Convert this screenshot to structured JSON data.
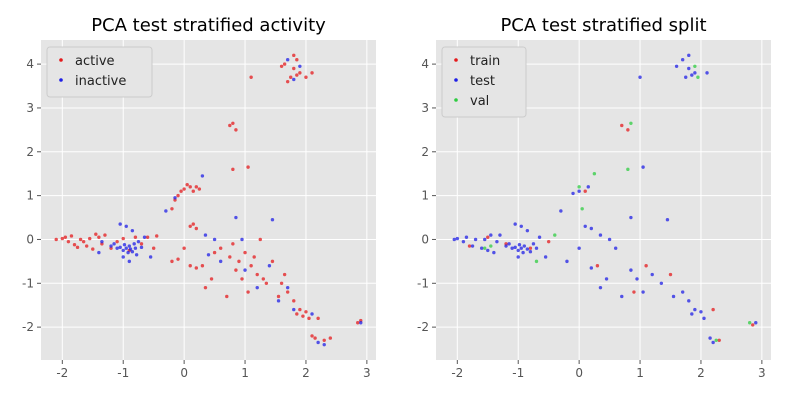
{
  "chart_data": [
    {
      "type": "scatter",
      "title": "PCA test stratified activity",
      "xlabel": "",
      "ylabel": "",
      "xlim": [
        -2.35,
        3.15
      ],
      "ylim": [
        -2.75,
        4.55
      ],
      "x_ticks": [
        -2,
        -1,
        0,
        1,
        2,
        3
      ],
      "y_ticks": [
        -2,
        -1,
        0,
        1,
        2,
        3,
        4
      ],
      "grid": true,
      "legend_position": "top-left",
      "series": [
        {
          "name": "active",
          "color": "#e41a1c",
          "points": [
            [
              -2.1,
              0.0
            ],
            [
              -2.0,
              0.02
            ],
            [
              -1.95,
              0.05
            ],
            [
              -1.9,
              -0.05
            ],
            [
              -1.85,
              0.08
            ],
            [
              -1.8,
              -0.12
            ],
            [
              -1.75,
              -0.18
            ],
            [
              -1.7,
              0.0
            ],
            [
              -1.65,
              -0.05
            ],
            [
              -1.6,
              -0.15
            ],
            [
              -1.55,
              0.02
            ],
            [
              -1.5,
              -0.22
            ],
            [
              -1.45,
              0.12
            ],
            [
              -1.4,
              0.05
            ],
            [
              -1.35,
              -0.1
            ],
            [
              -1.3,
              0.1
            ],
            [
              -1.2,
              -0.2
            ],
            [
              -1.1,
              -0.05
            ],
            [
              -1.0,
              0.02
            ],
            [
              -0.9,
              -0.25
            ],
            [
              -0.8,
              0.05
            ],
            [
              -0.7,
              -0.1
            ],
            [
              -0.6,
              0.05
            ],
            [
              -0.5,
              -0.2
            ],
            [
              -0.45,
              0.08
            ],
            [
              -0.2,
              0.7
            ],
            [
              -0.15,
              0.9
            ],
            [
              -0.1,
              1.0
            ],
            [
              -0.05,
              1.1
            ],
            [
              0.0,
              1.15
            ],
            [
              0.05,
              1.25
            ],
            [
              0.1,
              1.2
            ],
            [
              0.15,
              1.1
            ],
            [
              0.2,
              1.2
            ],
            [
              0.25,
              1.15
            ],
            [
              0.1,
              0.3
            ],
            [
              0.15,
              0.35
            ],
            [
              0.2,
              0.25
            ],
            [
              -0.2,
              -0.5
            ],
            [
              -0.1,
              -0.45
            ],
            [
              0.0,
              -0.2
            ],
            [
              0.1,
              -0.6
            ],
            [
              0.2,
              -0.65
            ],
            [
              0.3,
              -0.6
            ],
            [
              0.35,
              -1.1
            ],
            [
              0.45,
              -0.9
            ],
            [
              0.5,
              -0.3
            ],
            [
              0.6,
              -0.2
            ],
            [
              0.7,
              -1.3
            ],
            [
              0.75,
              -0.4
            ],
            [
              0.8,
              -0.1
            ],
            [
              0.85,
              -0.7
            ],
            [
              0.9,
              -0.5
            ],
            [
              0.95,
              -0.9
            ],
            [
              1.0,
              -0.3
            ],
            [
              1.05,
              -1.2
            ],
            [
              1.1,
              -0.6
            ],
            [
              1.15,
              -0.4
            ],
            [
              1.2,
              -0.8
            ],
            [
              1.25,
              0.0
            ],
            [
              1.3,
              -0.9
            ],
            [
              1.35,
              -1.0
            ],
            [
              1.45,
              -0.5
            ],
            [
              1.55,
              -1.3
            ],
            [
              1.6,
              -1.0
            ],
            [
              1.65,
              -0.8
            ],
            [
              1.7,
              -1.2
            ],
            [
              1.8,
              -1.4
            ],
            [
              1.85,
              -1.7
            ],
            [
              1.9,
              -1.6
            ],
            [
              1.95,
              -1.75
            ],
            [
              2.0,
              -1.65
            ],
            [
              2.05,
              -1.8
            ],
            [
              2.1,
              -2.2
            ],
            [
              2.15,
              -2.25
            ],
            [
              2.2,
              -1.8
            ],
            [
              2.3,
              -2.3
            ],
            [
              2.4,
              -2.25
            ],
            [
              2.85,
              -1.9
            ],
            [
              2.9,
              -1.85
            ],
            [
              0.75,
              2.6
            ],
            [
              0.8,
              2.65
            ],
            [
              0.85,
              2.5
            ],
            [
              0.8,
              1.6
            ],
            [
              1.05,
              1.65
            ],
            [
              1.1,
              3.7
            ],
            [
              1.6,
              3.95
            ],
            [
              1.65,
              4.0
            ],
            [
              1.7,
              3.6
            ],
            [
              1.75,
              3.7
            ],
            [
              1.8,
              3.9
            ],
            [
              1.85,
              3.75
            ],
            [
              1.9,
              3.8
            ],
            [
              2.0,
              3.7
            ],
            [
              2.1,
              3.8
            ],
            [
              1.8,
              4.2
            ],
            [
              1.85,
              4.1
            ]
          ]
        },
        {
          "name": "inactive",
          "color": "#1f1fe6",
          "points": [
            [
              -1.4,
              -0.3
            ],
            [
              -1.35,
              -0.05
            ],
            [
              -1.2,
              -0.15
            ],
            [
              -1.15,
              -0.1
            ],
            [
              -1.1,
              -0.2
            ],
            [
              -1.05,
              -0.18
            ],
            [
              -1.0,
              -0.25
            ],
            [
              -0.98,
              -0.12
            ],
            [
              -0.95,
              -0.2
            ],
            [
              -0.92,
              -0.3
            ],
            [
              -0.9,
              -0.15
            ],
            [
              -0.88,
              -0.22
            ],
            [
              -0.85,
              -0.28
            ],
            [
              -0.82,
              -0.1
            ],
            [
              -0.8,
              -0.2
            ],
            [
              -0.78,
              -0.35
            ],
            [
              -0.75,
              -0.05
            ],
            [
              -0.7,
              -0.18
            ],
            [
              -0.65,
              0.05
            ],
            [
              -0.55,
              -0.4
            ],
            [
              -1.05,
              0.35
            ],
            [
              -0.95,
              0.3
            ],
            [
              -0.85,
              0.2
            ],
            [
              -1.0,
              -0.4
            ],
            [
              -0.9,
              -0.5
            ],
            [
              -0.3,
              0.65
            ],
            [
              -0.15,
              0.95
            ],
            [
              0.3,
              1.45
            ],
            [
              0.35,
              0.1
            ],
            [
              0.5,
              0.0
            ],
            [
              0.85,
              0.5
            ],
            [
              1.45,
              0.45
            ],
            [
              0.95,
              0.0
            ],
            [
              0.4,
              -0.35
            ],
            [
              0.6,
              -0.5
            ],
            [
              1.0,
              -0.7
            ],
            [
              1.2,
              -1.1
            ],
            [
              1.4,
              -0.6
            ],
            [
              1.55,
              -1.4
            ],
            [
              1.7,
              -1.1
            ],
            [
              1.8,
              -1.6
            ],
            [
              2.1,
              -1.7
            ],
            [
              2.2,
              -2.35
            ],
            [
              2.3,
              -2.4
            ],
            [
              2.9,
              -1.9
            ],
            [
              1.8,
              3.65
            ],
            [
              1.9,
              3.95
            ],
            [
              1.7,
              4.1
            ]
          ]
        }
      ]
    },
    {
      "type": "scatter",
      "title": "PCA test stratified split",
      "xlabel": "",
      "ylabel": "",
      "xlim": [
        -2.35,
        3.15
      ],
      "ylim": [
        -2.75,
        4.55
      ],
      "x_ticks": [
        -2,
        -1,
        0,
        1,
        2,
        3
      ],
      "y_ticks": [
        -2,
        -1,
        0,
        1,
        2,
        3,
        4
      ],
      "grid": true,
      "legend_position": "top-left",
      "series": [
        {
          "name": "train",
          "color": "#e41a1c",
          "points": [
            [
              -1.8,
              -0.15
            ],
            [
              -1.5,
              0.05
            ],
            [
              -1.2,
              -0.1
            ],
            [
              -0.8,
              -0.2
            ],
            [
              -0.5,
              -0.05
            ],
            [
              0.1,
              1.1
            ],
            [
              0.3,
              -0.6
            ],
            [
              0.7,
              2.6
            ],
            [
              0.8,
              2.5
            ],
            [
              1.1,
              -0.6
            ],
            [
              1.5,
              -0.8
            ],
            [
              2.2,
              -1.6
            ],
            [
              2.3,
              -2.3
            ],
            [
              2.85,
              -1.95
            ],
            [
              0.9,
              -1.2
            ]
          ]
        },
        {
          "name": "test",
          "color": "#1f1fe6",
          "points": [
            [
              -2.05,
              0.0
            ],
            [
              -2.0,
              0.02
            ],
            [
              -1.9,
              -0.05
            ],
            [
              -1.85,
              0.05
            ],
            [
              -1.75,
              -0.15
            ],
            [
              -1.7,
              0.0
            ],
            [
              -1.6,
              -0.2
            ],
            [
              -1.55,
              0.0
            ],
            [
              -1.5,
              -0.25
            ],
            [
              -1.45,
              0.1
            ],
            [
              -1.4,
              -0.3
            ],
            [
              -1.35,
              -0.05
            ],
            [
              -1.3,
              0.1
            ],
            [
              -1.2,
              -0.15
            ],
            [
              -1.15,
              -0.1
            ],
            [
              -1.1,
              -0.2
            ],
            [
              -1.05,
              -0.18
            ],
            [
              -1.0,
              -0.25
            ],
            [
              -0.98,
              -0.12
            ],
            [
              -0.95,
              -0.2
            ],
            [
              -0.92,
              -0.3
            ],
            [
              -0.9,
              -0.15
            ],
            [
              -0.85,
              -0.22
            ],
            [
              -0.8,
              -0.28
            ],
            [
              -0.75,
              -0.1
            ],
            [
              -0.7,
              -0.2
            ],
            [
              -0.65,
              0.05
            ],
            [
              -0.55,
              -0.4
            ],
            [
              -1.05,
              0.35
            ],
            [
              -0.95,
              0.3
            ],
            [
              -0.85,
              0.2
            ],
            [
              -1.0,
              -0.4
            ],
            [
              -0.3,
              0.65
            ],
            [
              -0.1,
              1.05
            ],
            [
              0.0,
              1.1
            ],
            [
              0.15,
              1.2
            ],
            [
              0.1,
              0.3
            ],
            [
              0.2,
              0.25
            ],
            [
              0.35,
              0.1
            ],
            [
              0.5,
              0.0
            ],
            [
              0.85,
              0.5
            ],
            [
              1.45,
              0.45
            ],
            [
              -0.2,
              -0.5
            ],
            [
              0.0,
              -0.2
            ],
            [
              0.2,
              -0.65
            ],
            [
              0.35,
              -1.1
            ],
            [
              0.45,
              -0.9
            ],
            [
              0.6,
              -0.2
            ],
            [
              0.7,
              -1.3
            ],
            [
              0.85,
              -0.7
            ],
            [
              0.95,
              -0.9
            ],
            [
              1.05,
              -1.2
            ],
            [
              1.2,
              -0.8
            ],
            [
              1.35,
              -1.0
            ],
            [
              1.55,
              -1.3
            ],
            [
              1.7,
              -1.2
            ],
            [
              1.8,
              -1.4
            ],
            [
              1.85,
              -1.7
            ],
            [
              1.9,
              -1.6
            ],
            [
              2.0,
              -1.65
            ],
            [
              2.05,
              -1.8
            ],
            [
              2.15,
              -2.25
            ],
            [
              2.2,
              -2.35
            ],
            [
              2.9,
              -1.9
            ],
            [
              1.05,
              1.65
            ],
            [
              1.0,
              3.7
            ],
            [
              1.6,
              3.95
            ],
            [
              1.75,
              3.7
            ],
            [
              1.8,
              3.9
            ],
            [
              1.85,
              3.75
            ],
            [
              1.9,
              3.8
            ],
            [
              2.1,
              3.8
            ],
            [
              1.8,
              4.2
            ],
            [
              1.7,
              4.1
            ]
          ]
        },
        {
          "name": "val",
          "color": "#2ecc40",
          "points": [
            [
              -1.55,
              -0.2
            ],
            [
              -1.45,
              -0.15
            ],
            [
              -0.7,
              -0.5
            ],
            [
              -0.4,
              0.1
            ],
            [
              0.0,
              1.2
            ],
            [
              0.05,
              0.7
            ],
            [
              0.25,
              1.5
            ],
            [
              0.8,
              1.6
            ],
            [
              0.85,
              2.65
            ],
            [
              1.95,
              3.7
            ],
            [
              1.9,
              3.95
            ],
            [
              2.8,
              -1.9
            ],
            [
              2.25,
              -2.3
            ]
          ]
        }
      ]
    }
  ]
}
